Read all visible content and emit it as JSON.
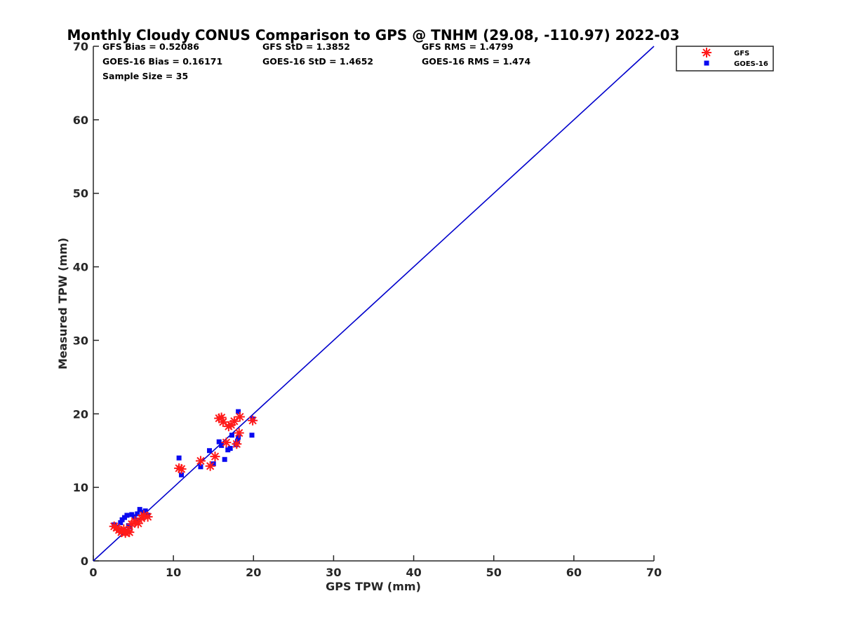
{
  "chart_data": {
    "type": "scatter",
    "title": "Monthly Cloudy CONUS Comparison to GPS @ TNHM (29.08, -110.97) 2022-03",
    "xlabel": "GPS TPW (mm)",
    "ylabel": "Measured TPW (mm)",
    "xlim": [
      0,
      70
    ],
    "ylim": [
      0,
      70
    ],
    "xticks": [
      0,
      10,
      20,
      30,
      40,
      50,
      60,
      70
    ],
    "yticks": [
      0,
      10,
      20,
      30,
      40,
      50,
      60,
      70
    ],
    "grid": false,
    "legend_position": "outside-top-right",
    "stats": [
      [
        "GFS Bias = 0.52086",
        "GFS StD = 1.3852",
        "GFS RMS = 1.4799"
      ],
      [
        "GOES-16 Bias = 0.16171",
        "GOES-16 StD = 1.4652",
        "GOES-16 RMS = 1.474"
      ],
      [
        "Sample Size = 35"
      ]
    ],
    "reference_line": {
      "x": [
        0,
        70
      ],
      "y": [
        0,
        70
      ],
      "color": "#0000cc"
    },
    "series": [
      {
        "name": "GFS",
        "marker": "asterisk",
        "color": "#ff1a1a",
        "points": [
          [
            2.6,
            4.7
          ],
          [
            2.9,
            4.5
          ],
          [
            3.2,
            4.2
          ],
          [
            3.5,
            3.9
          ],
          [
            3.8,
            4.3
          ],
          [
            4.0,
            3.8
          ],
          [
            4.3,
            4.1
          ],
          [
            4.5,
            3.9
          ],
          [
            4.8,
            5.0
          ],
          [
            5.2,
            5.4
          ],
          [
            5.6,
            5.1
          ],
          [
            6.0,
            5.8
          ],
          [
            6.3,
            6.2
          ],
          [
            6.8,
            6.0
          ],
          [
            10.7,
            12.6
          ],
          [
            11.0,
            12.5
          ],
          [
            13.4,
            13.6
          ],
          [
            14.6,
            12.9
          ],
          [
            15.2,
            14.2
          ],
          [
            15.7,
            19.4
          ],
          [
            16.0,
            19.5
          ],
          [
            16.2,
            18.9
          ],
          [
            16.6,
            16.1
          ],
          [
            16.9,
            18.3
          ],
          [
            17.2,
            18.5
          ],
          [
            17.6,
            19.0
          ],
          [
            17.9,
            15.9
          ],
          [
            18.2,
            17.4
          ],
          [
            18.3,
            19.6
          ],
          [
            19.9,
            19.1
          ]
        ]
      },
      {
        "name": "GOES-16",
        "marker": "square",
        "color": "#0a0af0",
        "points": [
          [
            2.6,
            4.9
          ],
          [
            3.0,
            4.6
          ],
          [
            3.4,
            5.2
          ],
          [
            3.6,
            5.6
          ],
          [
            3.9,
            5.9
          ],
          [
            4.2,
            6.2
          ],
          [
            4.4,
            4.8
          ],
          [
            4.6,
            4.6
          ],
          [
            4.8,
            6.3
          ],
          [
            5.1,
            6.0
          ],
          [
            5.5,
            6.4
          ],
          [
            5.8,
            7.0
          ],
          [
            6.2,
            6.6
          ],
          [
            6.5,
            6.8
          ],
          [
            6.8,
            6.2
          ],
          [
            10.7,
            14.0
          ],
          [
            11.0,
            11.7
          ],
          [
            13.4,
            12.8
          ],
          [
            14.5,
            15.0
          ],
          [
            15.0,
            13.2
          ],
          [
            15.7,
            16.2
          ],
          [
            16.0,
            15.7
          ],
          [
            16.4,
            13.8
          ],
          [
            16.8,
            15.1
          ],
          [
            17.1,
            15.3
          ],
          [
            17.3,
            17.1
          ],
          [
            17.8,
            15.8
          ],
          [
            18.0,
            16.3
          ],
          [
            18.1,
            16.8
          ],
          [
            18.1,
            20.3
          ],
          [
            19.8,
            17.1
          ],
          [
            19.9,
            19.3
          ]
        ]
      }
    ]
  }
}
